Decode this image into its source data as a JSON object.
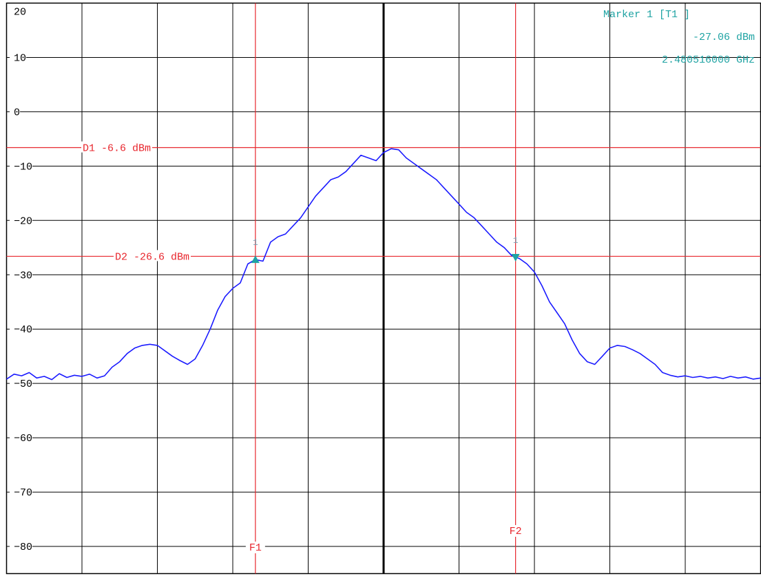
{
  "chart_data": {
    "type": "line",
    "title": "",
    "xlabel": "",
    "ylabel": "",
    "ylim": [
      -85,
      20
    ],
    "x_divisions": 10,
    "grid": true,
    "y_ticks": [
      20,
      10,
      0,
      -10,
      -20,
      -30,
      -40,
      -50,
      -60,
      -70,
      -80
    ],
    "y_tick_labels": [
      "20",
      "10",
      "0",
      "-10",
      "-20",
      "-30",
      "-40",
      "-50",
      "-60",
      "-70",
      "-80"
    ],
    "series": [
      {
        "color": "#1a1aff",
        "points": [
          [
            0.0,
            -49.2
          ],
          [
            0.1,
            -48.3
          ],
          [
            0.2,
            -48.6
          ],
          [
            0.3,
            -48.0
          ],
          [
            0.4,
            -49.0
          ],
          [
            0.5,
            -48.7
          ],
          [
            0.6,
            -49.3
          ],
          [
            0.7,
            -48.2
          ],
          [
            0.8,
            -48.9
          ],
          [
            0.9,
            -48.5
          ],
          [
            1.0,
            -48.7
          ],
          [
            1.1,
            -48.3
          ],
          [
            1.2,
            -49.0
          ],
          [
            1.3,
            -48.6
          ],
          [
            1.4,
            -47.0
          ],
          [
            1.5,
            -46.0
          ],
          [
            1.6,
            -44.5
          ],
          [
            1.7,
            -43.5
          ],
          [
            1.8,
            -43.0
          ],
          [
            1.9,
            -42.8
          ],
          [
            2.0,
            -43.0
          ],
          [
            2.1,
            -44.0
          ],
          [
            2.2,
            -45.0
          ],
          [
            2.3,
            -45.8
          ],
          [
            2.4,
            -46.5
          ],
          [
            2.5,
            -45.5
          ],
          [
            2.6,
            -43.0
          ],
          [
            2.7,
            -40.0
          ],
          [
            2.8,
            -36.5
          ],
          [
            2.9,
            -34.0
          ],
          [
            3.0,
            -32.5
          ],
          [
            3.1,
            -31.5
          ],
          [
            3.2,
            -28.0
          ],
          [
            3.3,
            -27.2
          ],
          [
            3.4,
            -27.5
          ],
          [
            3.5,
            -24.0
          ],
          [
            3.6,
            -23.0
          ],
          [
            3.7,
            -22.5
          ],
          [
            3.8,
            -21.0
          ],
          [
            3.9,
            -19.5
          ],
          [
            4.0,
            -17.5
          ],
          [
            4.1,
            -15.5
          ],
          [
            4.2,
            -14.0
          ],
          [
            4.3,
            -12.5
          ],
          [
            4.4,
            -12.0
          ],
          [
            4.5,
            -11.0
          ],
          [
            4.6,
            -9.5
          ],
          [
            4.7,
            -8.0
          ],
          [
            4.8,
            -8.5
          ],
          [
            4.9,
            -9.0
          ],
          [
            5.0,
            -7.5
          ],
          [
            5.1,
            -6.8
          ],
          [
            5.2,
            -7.0
          ],
          [
            5.3,
            -8.5
          ],
          [
            5.4,
            -9.5
          ],
          [
            5.5,
            -10.5
          ],
          [
            5.6,
            -11.5
          ],
          [
            5.7,
            -12.5
          ],
          [
            5.8,
            -14.0
          ],
          [
            5.9,
            -15.5
          ],
          [
            6.0,
            -17.0
          ],
          [
            6.1,
            -18.5
          ],
          [
            6.2,
            -19.5
          ],
          [
            6.3,
            -21.0
          ],
          [
            6.4,
            -22.5
          ],
          [
            6.5,
            -24.0
          ],
          [
            6.6,
            -25.0
          ],
          [
            6.7,
            -26.5
          ],
          [
            6.8,
            -27.0
          ],
          [
            6.9,
            -28.0
          ],
          [
            7.0,
            -29.5
          ],
          [
            7.1,
            -32.0
          ],
          [
            7.2,
            -35.0
          ],
          [
            7.3,
            -37.0
          ],
          [
            7.4,
            -39.0
          ],
          [
            7.5,
            -42.0
          ],
          [
            7.6,
            -44.5
          ],
          [
            7.7,
            -46.0
          ],
          [
            7.8,
            -46.5
          ],
          [
            7.9,
            -45.0
          ],
          [
            8.0,
            -43.5
          ],
          [
            8.1,
            -43.0
          ],
          [
            8.2,
            -43.2
          ],
          [
            8.3,
            -43.8
          ],
          [
            8.4,
            -44.5
          ],
          [
            8.5,
            -45.5
          ],
          [
            8.6,
            -46.5
          ],
          [
            8.7,
            -48.0
          ],
          [
            8.8,
            -48.5
          ],
          [
            8.9,
            -48.8
          ],
          [
            9.0,
            -48.6
          ],
          [
            9.1,
            -48.9
          ],
          [
            9.2,
            -48.7
          ],
          [
            9.3,
            -49.0
          ],
          [
            9.4,
            -48.8
          ],
          [
            9.5,
            -49.1
          ],
          [
            9.6,
            -48.7
          ],
          [
            9.7,
            -49.0
          ],
          [
            9.8,
            -48.8
          ],
          [
            9.9,
            -49.2
          ],
          [
            10.0,
            -49.0
          ]
        ]
      }
    ],
    "display_lines": [
      {
        "label": "D1 -6.6 dBm",
        "value": -6.6,
        "color": "#e8262d"
      },
      {
        "label": "D2 -26.6 dBm",
        "value": -26.6,
        "color": "#e8262d"
      }
    ],
    "frequency_lines": [
      {
        "label": "F1",
        "x": 3.3,
        "color": "#e8262d"
      },
      {
        "label": "F2",
        "x": 6.75,
        "color": "#e8262d"
      }
    ],
    "markers": [
      {
        "number": "1",
        "x": 3.3,
        "y": -27.2,
        "direction": "up",
        "color": "#1fa3a3"
      },
      {
        "number": "1",
        "x": 6.75,
        "y": -26.8,
        "direction": "down",
        "color": "#1fa3a3"
      }
    ],
    "marker_info": {
      "line1": "Marker 1 [T1 ]",
      "line2": "-27.06 dBm",
      "line3": "2.480516000 GHz"
    }
  }
}
